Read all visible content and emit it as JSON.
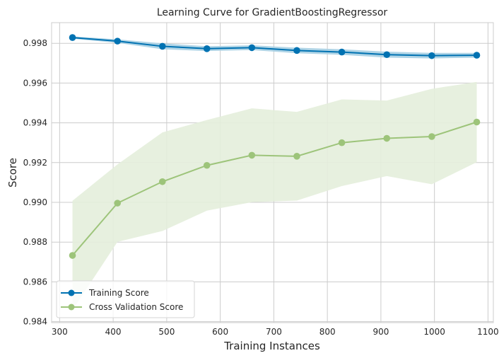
{
  "chart_data": {
    "type": "line",
    "title": "Learning Curve for GradientBoostingRegressor",
    "xlabel": "Training Instances",
    "ylabel": "Score",
    "xlim": [
      285,
      1110
    ],
    "ylim": [
      0.98395,
      0.99904
    ],
    "xticks": [
      300,
      400,
      500,
      600,
      700,
      800,
      900,
      1000,
      1100
    ],
    "yticks": [
      0.984,
      0.986,
      0.988,
      0.99,
      0.992,
      0.994,
      0.996,
      0.998
    ],
    "x": [
      324,
      408,
      492,
      575,
      659,
      743,
      827,
      911,
      995,
      1079
    ],
    "grid": true,
    "legend_position": "lower-left",
    "series": [
      {
        "name": "Training Score",
        "color": "#0072b2",
        "band_color": "#a6cfe3",
        "values": [
          0.99829,
          0.99811,
          0.99785,
          0.99773,
          0.99778,
          0.99764,
          0.99756,
          0.99743,
          0.99738,
          0.9974
        ],
        "upper": [
          0.99835,
          0.9982,
          0.998,
          0.99785,
          0.9979,
          0.99778,
          0.9977,
          0.99758,
          0.99752,
          0.99752
        ],
        "lower": [
          0.99823,
          0.99802,
          0.9977,
          0.99761,
          0.99766,
          0.9975,
          0.99742,
          0.99728,
          0.99724,
          0.99728
        ]
      },
      {
        "name": "Cross Validation Score",
        "color": "#9dc47a",
        "band_color": "#e4eedb",
        "values": [
          0.98733,
          0.98996,
          0.99104,
          0.99186,
          0.99237,
          0.99232,
          0.993,
          0.99322,
          0.99331,
          0.99404
        ],
        "upper": [
          0.99008,
          0.99191,
          0.99352,
          0.99414,
          0.99473,
          0.99455,
          0.99518,
          0.99512,
          0.99571,
          0.99606
        ],
        "lower": [
          0.98458,
          0.98801,
          0.98856,
          0.98958,
          0.99001,
          0.99009,
          0.99082,
          0.99132,
          0.99091,
          0.99202
        ]
      }
    ]
  }
}
